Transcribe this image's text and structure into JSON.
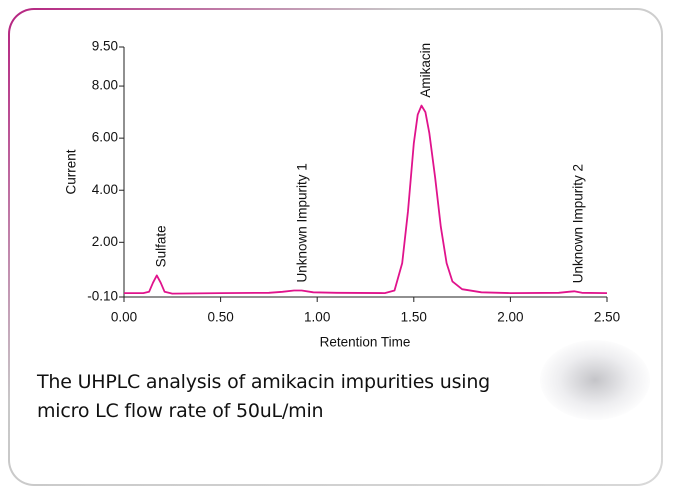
{
  "chart_data": {
    "type": "line",
    "x_label": "Retention Time",
    "y_label": "Current",
    "x": [
      0.0,
      0.1,
      0.13,
      0.15,
      0.17,
      0.19,
      0.21,
      0.25,
      0.5,
      0.75,
      0.82,
      0.88,
      0.92,
      0.98,
      1.1,
      1.35,
      1.4,
      1.44,
      1.47,
      1.5,
      1.52,
      1.54,
      1.56,
      1.58,
      1.61,
      1.64,
      1.67,
      1.7,
      1.75,
      1.85,
      2.0,
      2.25,
      2.3,
      2.33,
      2.37,
      2.5
    ],
    "values": [
      0.05,
      0.05,
      0.1,
      0.45,
      0.73,
      0.45,
      0.1,
      0.03,
      0.05,
      0.06,
      0.1,
      0.15,
      0.15,
      0.08,
      0.06,
      0.05,
      0.15,
      1.2,
      3.2,
      5.8,
      6.9,
      7.25,
      7.0,
      6.2,
      4.5,
      2.6,
      1.2,
      0.5,
      0.2,
      0.08,
      0.05,
      0.06,
      0.1,
      0.12,
      0.06,
      0.05
    ],
    "color": "#e0138c",
    "xlim": [
      0,
      2.5
    ],
    "ylim": [
      -0.1,
      9.5
    ],
    "xticks": [
      {
        "value": 0,
        "label": "0.00"
      },
      {
        "value": 0.5,
        "label": "0.50"
      },
      {
        "value": 1,
        "label": "1.00"
      },
      {
        "value": 1.5,
        "label": "1.50"
      },
      {
        "value": 2,
        "label": "2.00"
      },
      {
        "value": 2.5,
        "label": "2.50"
      }
    ],
    "yticks": [
      {
        "value": -0.1,
        "label": "-0.10"
      },
      {
        "value": 2,
        "label": "2.00"
      },
      {
        "value": 4,
        "label": "4.00"
      },
      {
        "value": 6,
        "label": "6.00"
      },
      {
        "value": 8,
        "label": "8.00"
      },
      {
        "value": 9.5,
        "label": "9.50"
      }
    ],
    "annotations": [
      {
        "text": "Sulfate",
        "x": 0.17,
        "y": 0.73
      },
      {
        "text": "Unknown Impurity 1",
        "x": 0.9,
        "y": 0.15
      },
      {
        "text": "Amikacin",
        "x": 1.54,
        "y": 7.25
      },
      {
        "text": "Unknown Impurity 2",
        "x": 2.33,
        "y": 0.12
      }
    ]
  },
  "caption": "The UHPLC analysis of amikacin impurities using micro LC flow rate of 50uL/min"
}
